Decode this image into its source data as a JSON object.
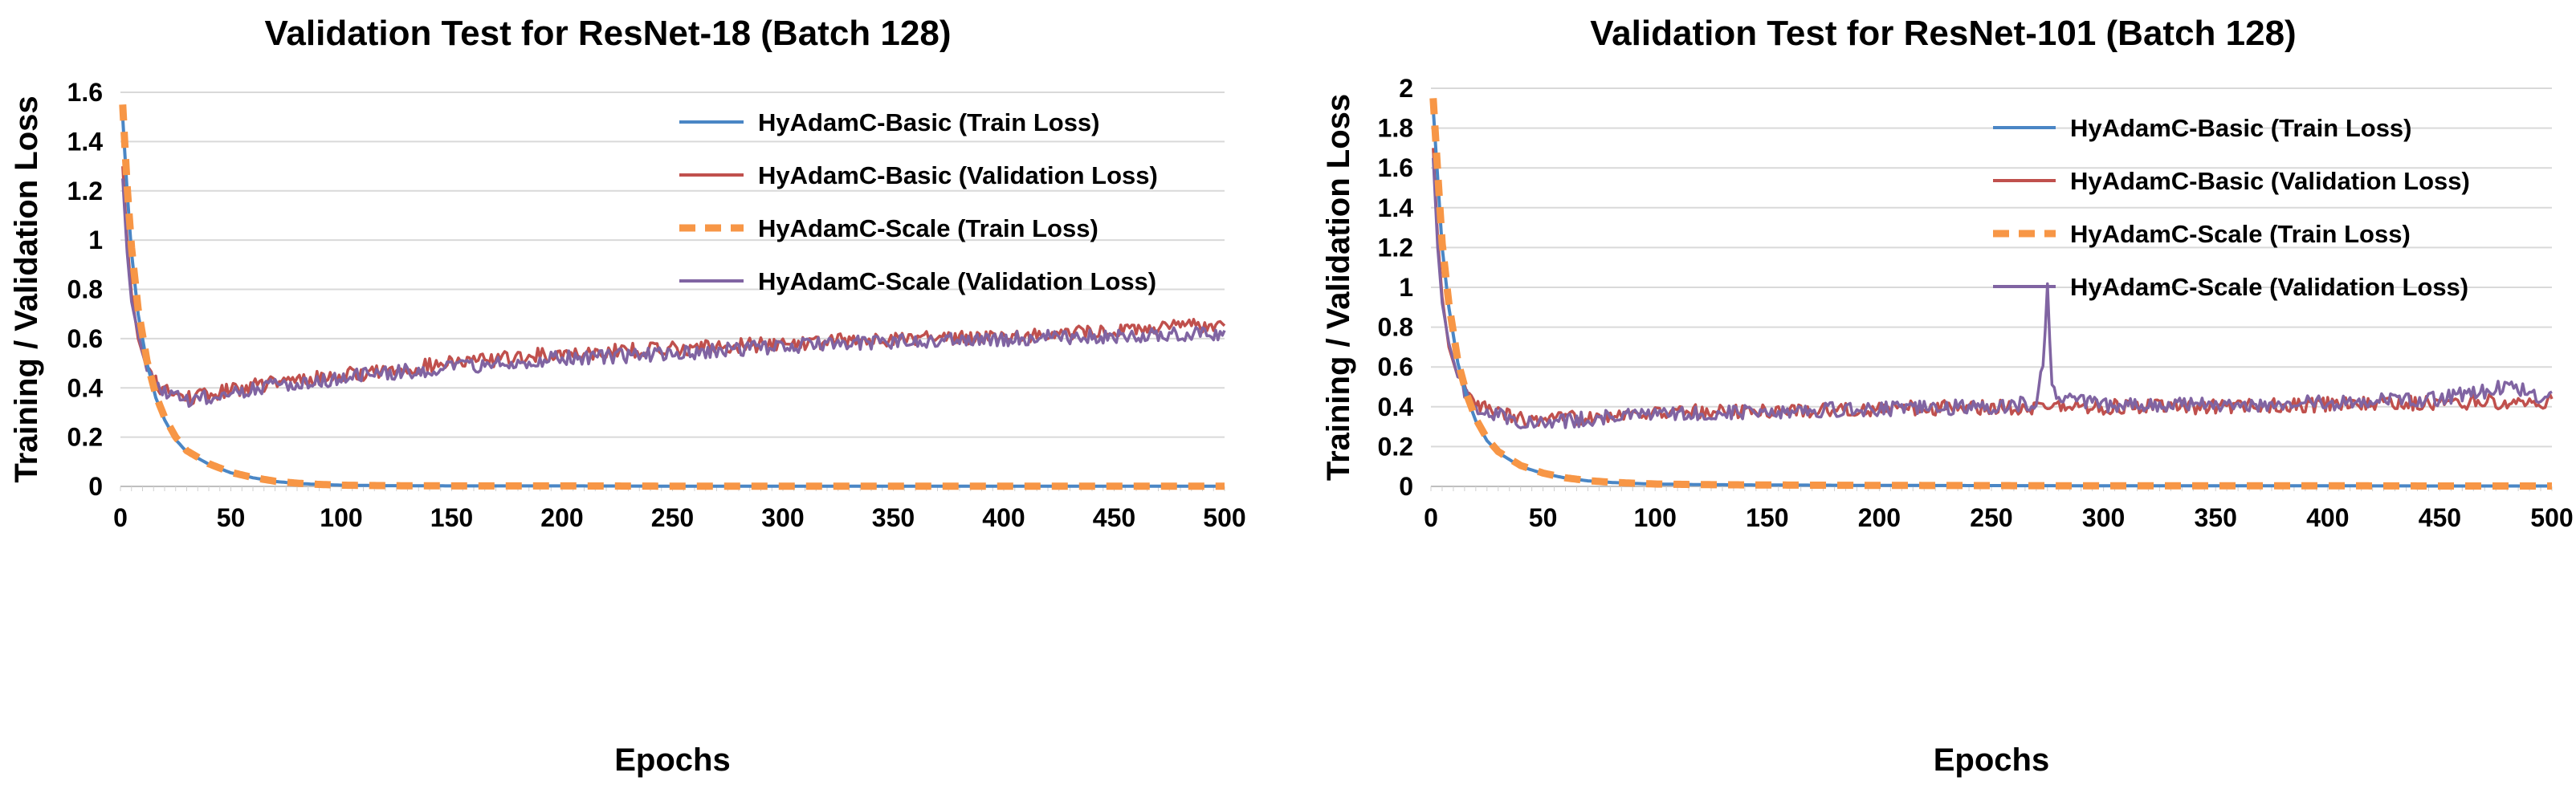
{
  "chart_data": [
    {
      "type": "line",
      "title": "Validation Test for ResNet-18 (Batch 128)",
      "xlabel": "Epochs",
      "ylabel": "Training / Validation Loss",
      "xlim": [
        0,
        500
      ],
      "ylim": [
        0,
        1.6
      ],
      "xticks": [
        "0",
        "50",
        "100",
        "150",
        "200",
        "250",
        "300",
        "350",
        "400",
        "450",
        "500"
      ],
      "yticks": [
        "0",
        "0.2",
        "0.4",
        "0.6",
        "0.8",
        "1",
        "1.2",
        "1.4",
        "1.6"
      ],
      "grid": "horizontal",
      "legend_position": "top-right",
      "series": [
        {
          "name": "HyAdamC-Basic (Train Loss)",
          "color": "#4a86c5",
          "style": "solid",
          "x": [
            1,
            3,
            5,
            8,
            12,
            16,
            20,
            25,
            30,
            40,
            50,
            60,
            70,
            80,
            90,
            100,
            120,
            150,
            200,
            250,
            300,
            350,
            400,
            450,
            500
          ],
          "y": [
            1.5,
            1.2,
            0.95,
            0.7,
            0.5,
            0.36,
            0.27,
            0.19,
            0.14,
            0.09,
            0.055,
            0.035,
            0.02,
            0.012,
            0.008,
            0.005,
            0.003,
            0.002,
            0.002,
            0.001,
            0.001,
            0.001,
            0.001,
            0.001,
            0.001
          ]
        },
        {
          "name": "HyAdamC-Basic (Validation Loss)",
          "color": "#c0504d",
          "style": "solid",
          "x": [
            1,
            3,
            5,
            8,
            12,
            16,
            20,
            25,
            30,
            40,
            50,
            60,
            80,
            100,
            120,
            150,
            175,
            200,
            250,
            300,
            350,
            400,
            450,
            500
          ],
          "y": [
            1.3,
            1.0,
            0.78,
            0.6,
            0.48,
            0.42,
            0.39,
            0.37,
            0.36,
            0.37,
            0.39,
            0.41,
            0.43,
            0.45,
            0.47,
            0.5,
            0.52,
            0.54,
            0.56,
            0.58,
            0.6,
            0.61,
            0.63,
            0.66
          ]
        },
        {
          "name": "HyAdamC-Scale (Train Loss)",
          "color": "#f79646",
          "style": "dashed",
          "x": [
            1,
            3,
            5,
            8,
            12,
            16,
            20,
            25,
            30,
            40,
            50,
            60,
            70,
            80,
            90,
            100,
            120,
            150,
            200,
            250,
            300,
            350,
            400,
            450,
            500
          ],
          "y": [
            1.55,
            1.22,
            0.97,
            0.72,
            0.51,
            0.37,
            0.28,
            0.2,
            0.145,
            0.092,
            0.057,
            0.036,
            0.021,
            0.013,
            0.008,
            0.005,
            0.003,
            0.002,
            0.002,
            0.001,
            0.001,
            0.001,
            0.001,
            0.001,
            0.001
          ]
        },
        {
          "name": "HyAdamC-Scale (Validation Loss)",
          "color": "#8064a2",
          "style": "solid",
          "x": [
            1,
            3,
            5,
            8,
            12,
            16,
            20,
            25,
            30,
            40,
            50,
            60,
            80,
            100,
            120,
            150,
            175,
            200,
            250,
            300,
            350,
            400,
            450,
            500
          ],
          "y": [
            1.25,
            0.95,
            0.75,
            0.62,
            0.47,
            0.41,
            0.38,
            0.36,
            0.35,
            0.36,
            0.38,
            0.4,
            0.42,
            0.44,
            0.46,
            0.48,
            0.5,
            0.52,
            0.54,
            0.57,
            0.59,
            0.6,
            0.61,
            0.62
          ]
        }
      ]
    },
    {
      "type": "line",
      "title": "Validation Test for ResNet-101 (Batch 128)",
      "xlabel": "Epochs",
      "ylabel": "Training / Validation Loss",
      "xlim": [
        0,
        500
      ],
      "ylim": [
        0,
        2
      ],
      "xticks": [
        "0",
        "50",
        "100",
        "150",
        "200",
        "250",
        "300",
        "350",
        "400",
        "450",
        "500"
      ],
      "yticks": [
        "0",
        "0.2",
        "0.4",
        "0.6",
        "0.8",
        "1",
        "1.2",
        "1.4",
        "1.6",
        "1.8",
        "2"
      ],
      "grid": "horizontal",
      "legend_position": "top-right",
      "series": [
        {
          "name": "HyAdamC-Basic (Train Loss)",
          "color": "#4a86c5",
          "style": "solid",
          "x": [
            1,
            3,
            5,
            8,
            12,
            16,
            20,
            25,
            30,
            40,
            50,
            60,
            70,
            80,
            90,
            100,
            120,
            150,
            200,
            250,
            300,
            350,
            400,
            450,
            500
          ],
          "y": [
            1.9,
            1.55,
            1.2,
            0.9,
            0.62,
            0.45,
            0.33,
            0.23,
            0.17,
            0.1,
            0.065,
            0.042,
            0.028,
            0.02,
            0.015,
            0.012,
            0.009,
            0.007,
            0.005,
            0.004,
            0.003,
            0.003,
            0.003,
            0.002,
            0.002
          ]
        },
        {
          "name": "HyAdamC-Basic (Validation Loss)",
          "color": "#c0504d",
          "style": "solid",
          "x": [
            1,
            3,
            5,
            8,
            12,
            16,
            20,
            25,
            30,
            40,
            50,
            60,
            80,
            100,
            150,
            200,
            250,
            300,
            350,
            400,
            450,
            500
          ],
          "y": [
            1.7,
            1.25,
            0.95,
            0.7,
            0.55,
            0.46,
            0.41,
            0.39,
            0.37,
            0.34,
            0.32,
            0.34,
            0.36,
            0.37,
            0.38,
            0.39,
            0.4,
            0.4,
            0.4,
            0.41,
            0.42,
            0.43
          ]
        },
        {
          "name": "HyAdamC-Scale (Train Loss)",
          "color": "#f79646",
          "style": "dashed",
          "x": [
            1,
            3,
            5,
            8,
            12,
            16,
            20,
            25,
            30,
            40,
            50,
            60,
            70,
            80,
            90,
            100,
            120,
            150,
            200,
            250,
            300,
            350,
            400,
            450,
            500
          ],
          "y": [
            1.95,
            1.58,
            1.22,
            0.92,
            0.63,
            0.46,
            0.34,
            0.24,
            0.175,
            0.105,
            0.067,
            0.043,
            0.029,
            0.021,
            0.016,
            0.012,
            0.009,
            0.007,
            0.005,
            0.004,
            0.003,
            0.003,
            0.003,
            0.002,
            0.002
          ]
        },
        {
          "name": "HyAdamC-Scale (Validation Loss)",
          "color": "#8064a2",
          "style": "solid",
          "x": [
            1,
            3,
            5,
            8,
            12,
            16,
            20,
            25,
            30,
            40,
            50,
            60,
            80,
            100,
            150,
            200,
            250,
            270,
            273,
            275,
            277,
            280,
            300,
            350,
            400,
            450,
            480,
            500
          ],
          "y": [
            1.65,
            1.2,
            0.92,
            0.72,
            0.55,
            0.45,
            0.4,
            0.38,
            0.36,
            0.33,
            0.31,
            0.33,
            0.35,
            0.36,
            0.38,
            0.39,
            0.4,
            0.42,
            0.6,
            1.04,
            0.5,
            0.44,
            0.41,
            0.41,
            0.42,
            0.44,
            0.5,
            0.44
          ]
        }
      ]
    }
  ]
}
